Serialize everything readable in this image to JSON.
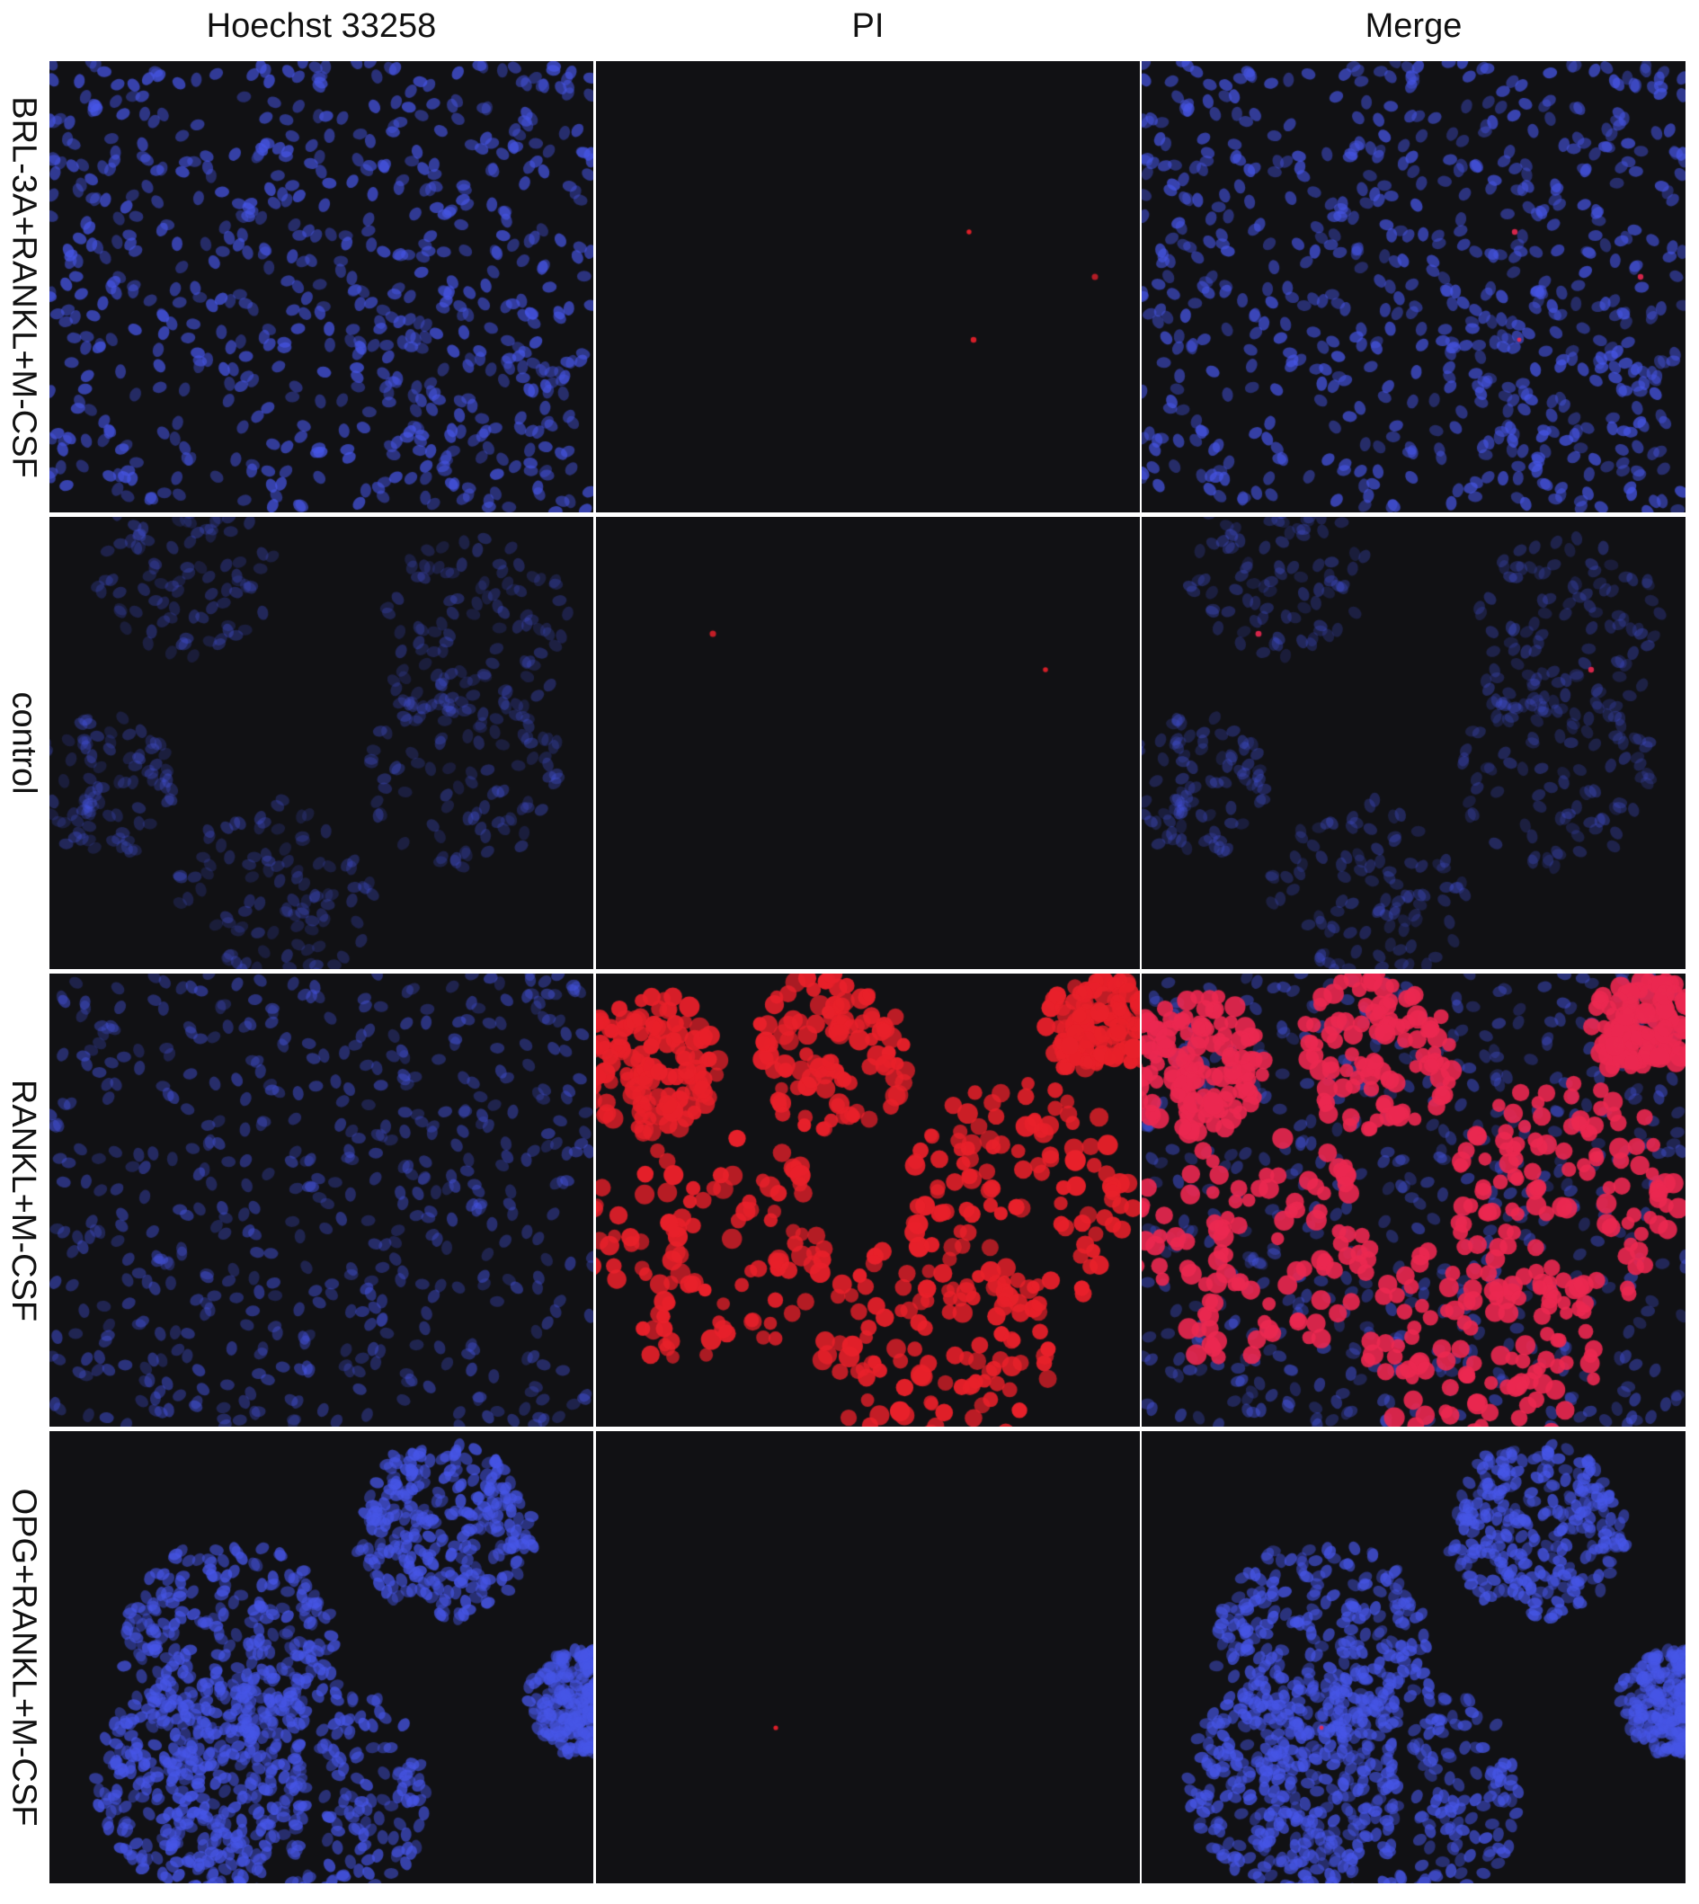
{
  "columns": [
    "Hoechst 33258",
    "PI",
    "Merge"
  ],
  "rows": [
    "BRL-3A+RANKL+M-CSF",
    "control",
    "RANKL+M-CSF",
    "OPG+RANKL+M-CSF"
  ],
  "colors": {
    "hoechst": "#3a4ad8",
    "pi": "#e8202a",
    "background": "#111114"
  }
}
